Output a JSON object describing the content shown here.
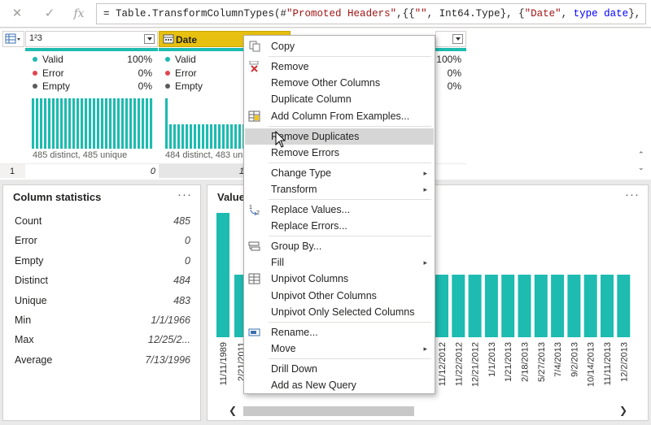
{
  "formula": {
    "part1": "= Table.TransformColumnTypes(#",
    "part2": "\"Promoted Headers\"",
    "part3": ",{{",
    "part4": "\"\"",
    "part5": ", Int64.Type}, {",
    "part6": "\"Date\"",
    "part7": ", ",
    "part8": "type date",
    "part9": "},"
  },
  "columns": [
    {
      "type_icon": "123",
      "name": "",
      "valid_label": "Valid",
      "valid_pct": "100%",
      "error_label": "Error",
      "error_pct": "0%",
      "empty_label": "Empty",
      "empty_pct": "0%",
      "distinct_text": "485 distinct, 485 unique",
      "row1_value": "0"
    },
    {
      "type_icon": "calendar",
      "name": "Date",
      "valid_label": "Valid",
      "error_label": "Error",
      "empty_label": "Empty",
      "distinct_text": "484 distinct, 483 uniq",
      "row1_value": "1"
    },
    {
      "valid_pct": "100%",
      "error_pct": "0%",
      "empty_pct": "0%"
    }
  ],
  "row_number": "1",
  "column_stats": {
    "title": "Column statistics",
    "rows": [
      {
        "label": "Count",
        "value": "485"
      },
      {
        "label": "Error",
        "value": "0"
      },
      {
        "label": "Empty",
        "value": "0"
      },
      {
        "label": "Distinct",
        "value": "484"
      },
      {
        "label": "Unique",
        "value": "483"
      },
      {
        "label": "Min",
        "value": "1/1/1966"
      },
      {
        "label": "Max",
        "value": "12/25/2..."
      },
      {
        "label": "Average",
        "value": "7/13/1996"
      }
    ]
  },
  "value_dist": {
    "title": "Value",
    "left_labels": [
      "11/11/1989",
      "2/21/2011"
    ],
    "right_labels": [
      "11/12/2012",
      "11/22/2012",
      "12/21/2012",
      "1/1/2013",
      "1/21/2013",
      "2/18/2013",
      "5/27/2013",
      "7/4/2013",
      "9/2/2013",
      "10/14/2013",
      "11/11/2013",
      "12/2/2013"
    ]
  },
  "context_menu": {
    "items": [
      {
        "label": "Copy",
        "icon": "copy-icon"
      },
      {
        "label": "Remove",
        "icon": "remove-icon"
      },
      {
        "label": "Remove Other Columns"
      },
      {
        "label": "Duplicate Column"
      },
      {
        "label": "Add Column From Examples...",
        "icon": "add-column-icon"
      },
      {
        "label": "Remove Duplicates",
        "highlighted": true
      },
      {
        "label": "Remove Errors"
      },
      {
        "label": "Change Type",
        "submenu": true
      },
      {
        "label": "Transform",
        "submenu": true
      },
      {
        "label": "Replace Values...",
        "icon": "replace-values-icon"
      },
      {
        "label": "Replace Errors..."
      },
      {
        "label": "Group By...",
        "icon": "group-by-icon"
      },
      {
        "label": "Fill",
        "submenu": true
      },
      {
        "label": "Unpivot Columns",
        "icon": "unpivot-icon"
      },
      {
        "label": "Unpivot Other Columns"
      },
      {
        "label": "Unpivot Only Selected Columns"
      },
      {
        "label": "Rename...",
        "icon": "rename-icon"
      },
      {
        "label": "Move",
        "submenu": true
      },
      {
        "label": "Drill Down"
      },
      {
        "label": "Add as New Query"
      }
    ]
  },
  "colors": {
    "accent_teal": "#1dbbb0",
    "selected_header": "#e8c00f",
    "error_red": "#e0464f",
    "empty_gray": "#5a5a5a"
  }
}
